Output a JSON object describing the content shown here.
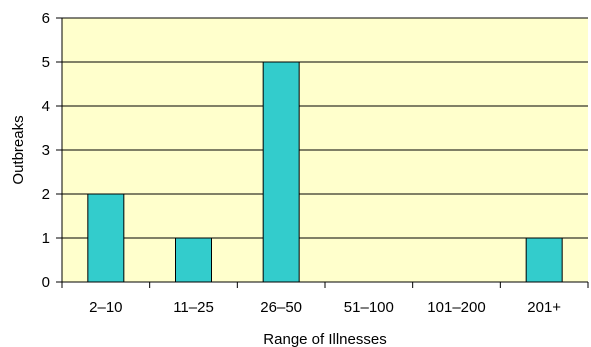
{
  "chart_data": {
    "type": "bar",
    "categories": [
      "2–10",
      "11–25",
      "26–50",
      "51–100",
      "101–200",
      "201+"
    ],
    "values": [
      2,
      1,
      5,
      0,
      0,
      1
    ],
    "xlabel": "Range of Illnesses",
    "ylabel": "Outbreaks",
    "ylim": [
      0,
      6
    ],
    "yticks": [
      "0",
      "1",
      "2",
      "3",
      "4",
      "5",
      "6"
    ],
    "grid": "horizontal",
    "colors": {
      "plot_background": "#ffffcc",
      "bar_fill": "#33cccc",
      "bar_stroke": "#000000",
      "gridline": "#000000"
    }
  }
}
